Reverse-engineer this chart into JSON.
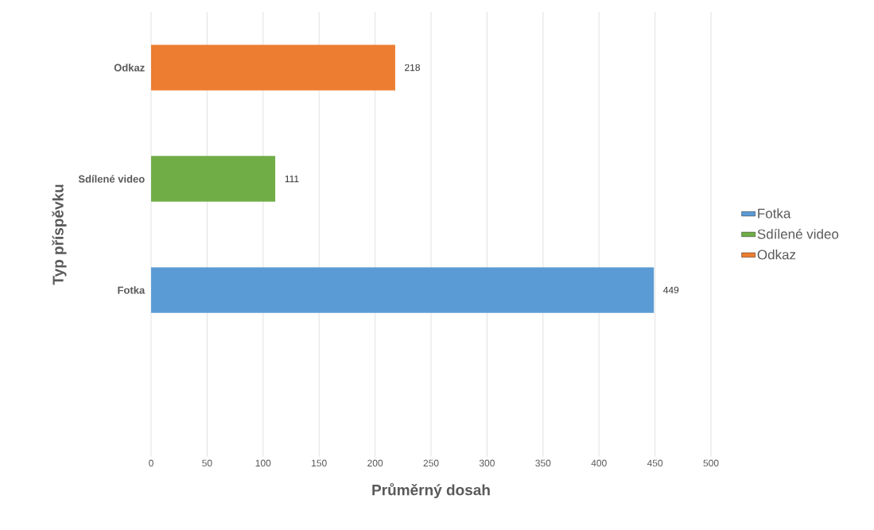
{
  "chart_data": {
    "type": "bar",
    "orientation": "horizontal",
    "categories": [
      "Odkaz",
      "Sdílené video",
      "Fotka",
      null
    ],
    "series": [
      {
        "name": "Fotka",
        "color": "#5b9bd5",
        "values": [
          null,
          null,
          449,
          null
        ]
      },
      {
        "name": "Sdílené video",
        "color": "#70ad47",
        "values": [
          null,
          111,
          null,
          null
        ]
      },
      {
        "name": "Odkaz",
        "color": "#ed7d31",
        "values": [
          218,
          null,
          null,
          null
        ]
      }
    ],
    "xlabel": "Průměrný dosah",
    "ylabel": "Typ příspěvku",
    "xlim": [
      0,
      500
    ],
    "xticks": [
      0,
      50,
      100,
      150,
      200,
      250,
      300,
      350,
      400,
      450,
      500
    ],
    "grid": "x",
    "legend": "right",
    "data_labels": true
  }
}
